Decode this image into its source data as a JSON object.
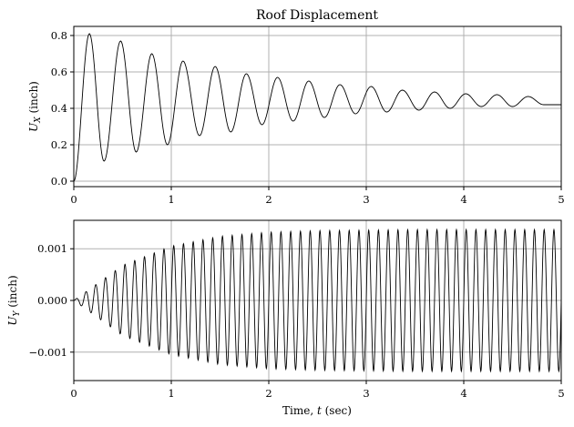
{
  "chart_data": [
    {
      "type": "line",
      "title": "Roof Displacement",
      "xlabel": "",
      "ylabel": "U_X (inch)",
      "xlim": [
        0,
        5
      ],
      "ylim": [
        -0.03,
        0.85
      ],
      "xticks": [
        0,
        1,
        2,
        3,
        4,
        5
      ],
      "xtick_labels": [
        "0",
        "1",
        "2",
        "3",
        "4",
        "5"
      ],
      "yticks": [
        0.0,
        0.2,
        0.4,
        0.6,
        0.8
      ],
      "ytick_labels": [
        "0.0",
        "0.2",
        "0.4",
        "0.6",
        "0.8"
      ],
      "grid": true,
      "series": [
        {
          "color": "#000000",
          "x": [
            0,
            0.16,
            0.31,
            0.48,
            0.64,
            0.8,
            0.96,
            1.12,
            1.29,
            1.45,
            1.61,
            1.77,
            1.93,
            2.09,
            2.25,
            2.41,
            2.57,
            2.73,
            2.89,
            3.05,
            3.21,
            3.37,
            3.54,
            3.7,
            3.86,
            4.02,
            4.18,
            4.34,
            4.5,
            4.66,
            4.82,
            5.0
          ],
          "y": [
            0.0,
            0.81,
            0.11,
            0.77,
            0.16,
            0.7,
            0.2,
            0.66,
            0.25,
            0.63,
            0.27,
            0.59,
            0.31,
            0.57,
            0.33,
            0.55,
            0.35,
            0.53,
            0.37,
            0.52,
            0.38,
            0.5,
            0.39,
            0.49,
            0.4,
            0.48,
            0.41,
            0.475,
            0.41,
            0.465,
            0.42,
            0.42
          ]
        }
      ]
    },
    {
      "type": "line",
      "title": "",
      "xlabel": "Time, t (sec)",
      "ylabel": "U_Y (inch)",
      "xlim": [
        0,
        5
      ],
      "ylim": [
        -0.00155,
        0.00155
      ],
      "xticks": [
        0,
        1,
        2,
        3,
        4,
        5
      ],
      "xtick_labels": [
        "0",
        "1",
        "2",
        "3",
        "4",
        "5"
      ],
      "yticks": [
        -0.001,
        0.0,
        0.001
      ],
      "ytick_labels": [
        "−0.001",
        "0.000",
        "0.001"
      ],
      "grid": true,
      "series": [
        {
          "color": "#000000",
          "oscillation_period_sec": 0.1,
          "x": [
            0,
            0.5,
            1.0,
            1.5,
            2.0,
            2.5,
            3.0,
            3.5,
            4.0,
            4.5,
            5.0
          ],
          "envelope": [
            0.0,
            0.00068,
            0.00105,
            0.00124,
            0.00132,
            0.00135,
            0.00136,
            0.00137,
            0.00137,
            0.00137,
            0.00137
          ]
        }
      ]
    }
  ]
}
